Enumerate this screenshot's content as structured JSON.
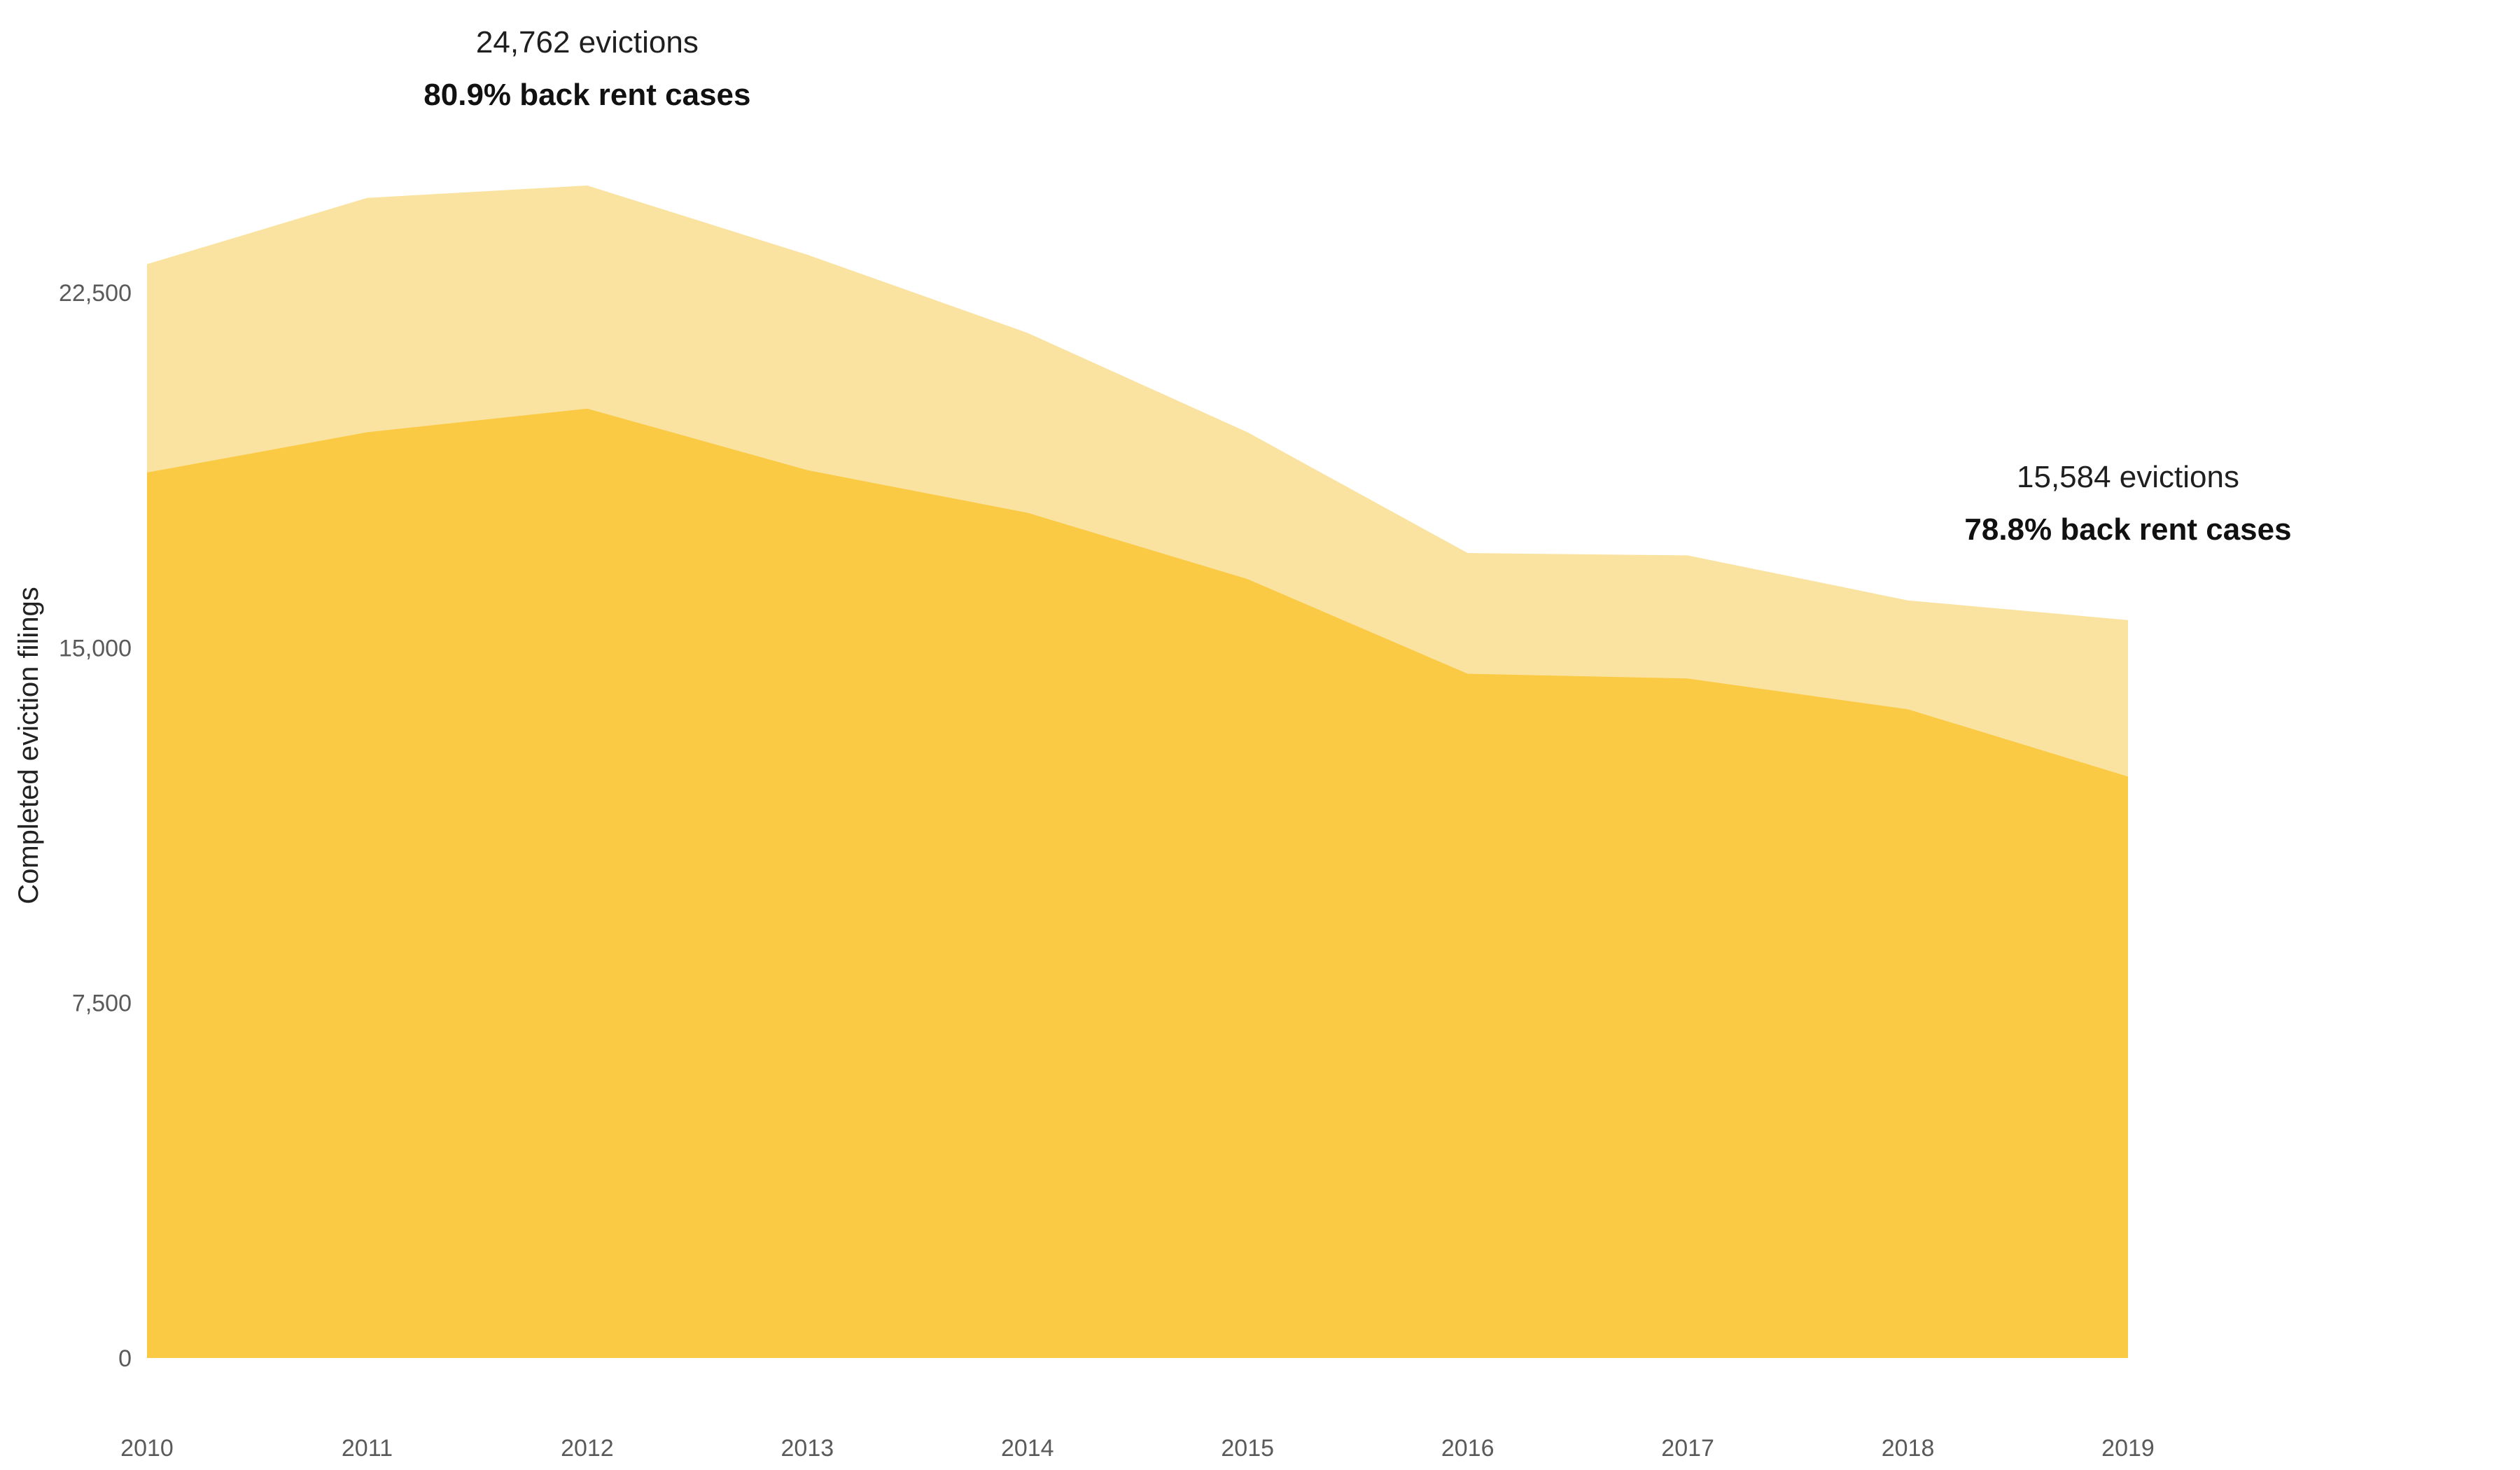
{
  "chart_data": {
    "type": "area",
    "x": [
      2010,
      2011,
      2012,
      2013,
      2014,
      2015,
      2016,
      2017,
      2018,
      2019
    ],
    "x_tick_labels": [
      "2010",
      "2011",
      "2012",
      "2013",
      "2014",
      "2015",
      "2016",
      "2017",
      "2018",
      "2019"
    ],
    "series": [
      {
        "key": "back_rent",
        "values": [
          18700,
          19550,
          20050,
          18750,
          17850,
          16450,
          14450,
          14350,
          13700,
          12280
        ],
        "color": "#fbca44"
      },
      {
        "key": "total",
        "values": [
          23100,
          24500,
          24762,
          23300,
          21650,
          19550,
          17000,
          16950,
          16000,
          15584
        ],
        "color": "#fae3a0"
      }
    ],
    "ylabel": "Completed eviction filings",
    "ylim": [
      0,
      27000
    ],
    "y_ticks": [
      0,
      7500,
      15000,
      22500
    ],
    "y_tick_labels": [
      "0",
      "7,500",
      "15,000",
      "22,500"
    ],
    "grid": false,
    "annotations": [
      {
        "x": 2012,
        "line1": "24,762 evictions",
        "line2": "80.9% back rent cases"
      },
      {
        "x": 2019,
        "line1": "15,584 evictions",
        "line2": "78.8% back rent cases"
      }
    ]
  }
}
